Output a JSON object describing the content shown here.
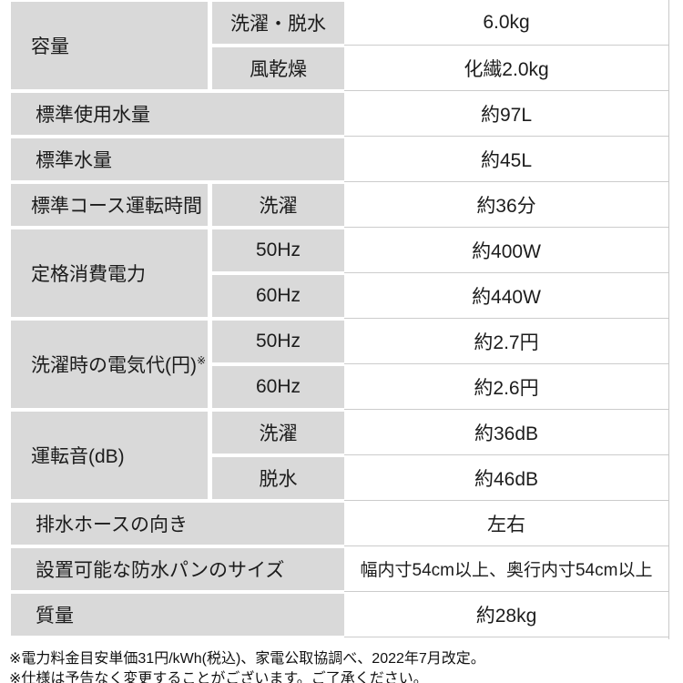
{
  "colors": {
    "cell_background": "#d9d9d9",
    "value_background": "#ffffff",
    "hairline": "#cccccc",
    "text": "#1c1c1c"
  },
  "table": {
    "rows": [
      {
        "label": "容量",
        "subs": [
          {
            "label": "洗濯・脱水",
            "value": "6.0kg"
          },
          {
            "label": "風乾燥",
            "value": "化繊2.0kg"
          }
        ]
      },
      {
        "label": "標準使用水量",
        "value": "約97L"
      },
      {
        "label": "標準水量",
        "value": "約45L"
      },
      {
        "label": "標準コース運転時間",
        "subs": [
          {
            "label": "洗濯",
            "value": "約36分"
          }
        ]
      },
      {
        "label": "定格消費電力",
        "subs": [
          {
            "label": "50Hz",
            "value": "約400W"
          },
          {
            "label": "60Hz",
            "value": "約440W"
          }
        ]
      },
      {
        "label": "洗濯時の電気代(円)",
        "label_sup": "※",
        "subs": [
          {
            "label": "50Hz",
            "value": "約2.7円"
          },
          {
            "label": "60Hz",
            "value": "約2.6円"
          }
        ]
      },
      {
        "label": "運転音(dB)",
        "subs": [
          {
            "label": "洗濯",
            "value": "約36dB"
          },
          {
            "label": "脱水",
            "value": "約46dB"
          }
        ]
      },
      {
        "label": "排水ホースの向き",
        "value": "左右"
      },
      {
        "label": "設置可能な防水パンのサイズ",
        "value": "幅内寸54cm以上、奥行内寸54cm以上"
      },
      {
        "label": "質量",
        "value": "約28kg"
      }
    ]
  },
  "footer": {
    "notes": [
      "※電力料金目安単価31円/kWh(税込)、家電公取協調べ、2022年7月改定。",
      "※仕様は予告なく変更することがございます。ご了承ください。"
    ]
  }
}
